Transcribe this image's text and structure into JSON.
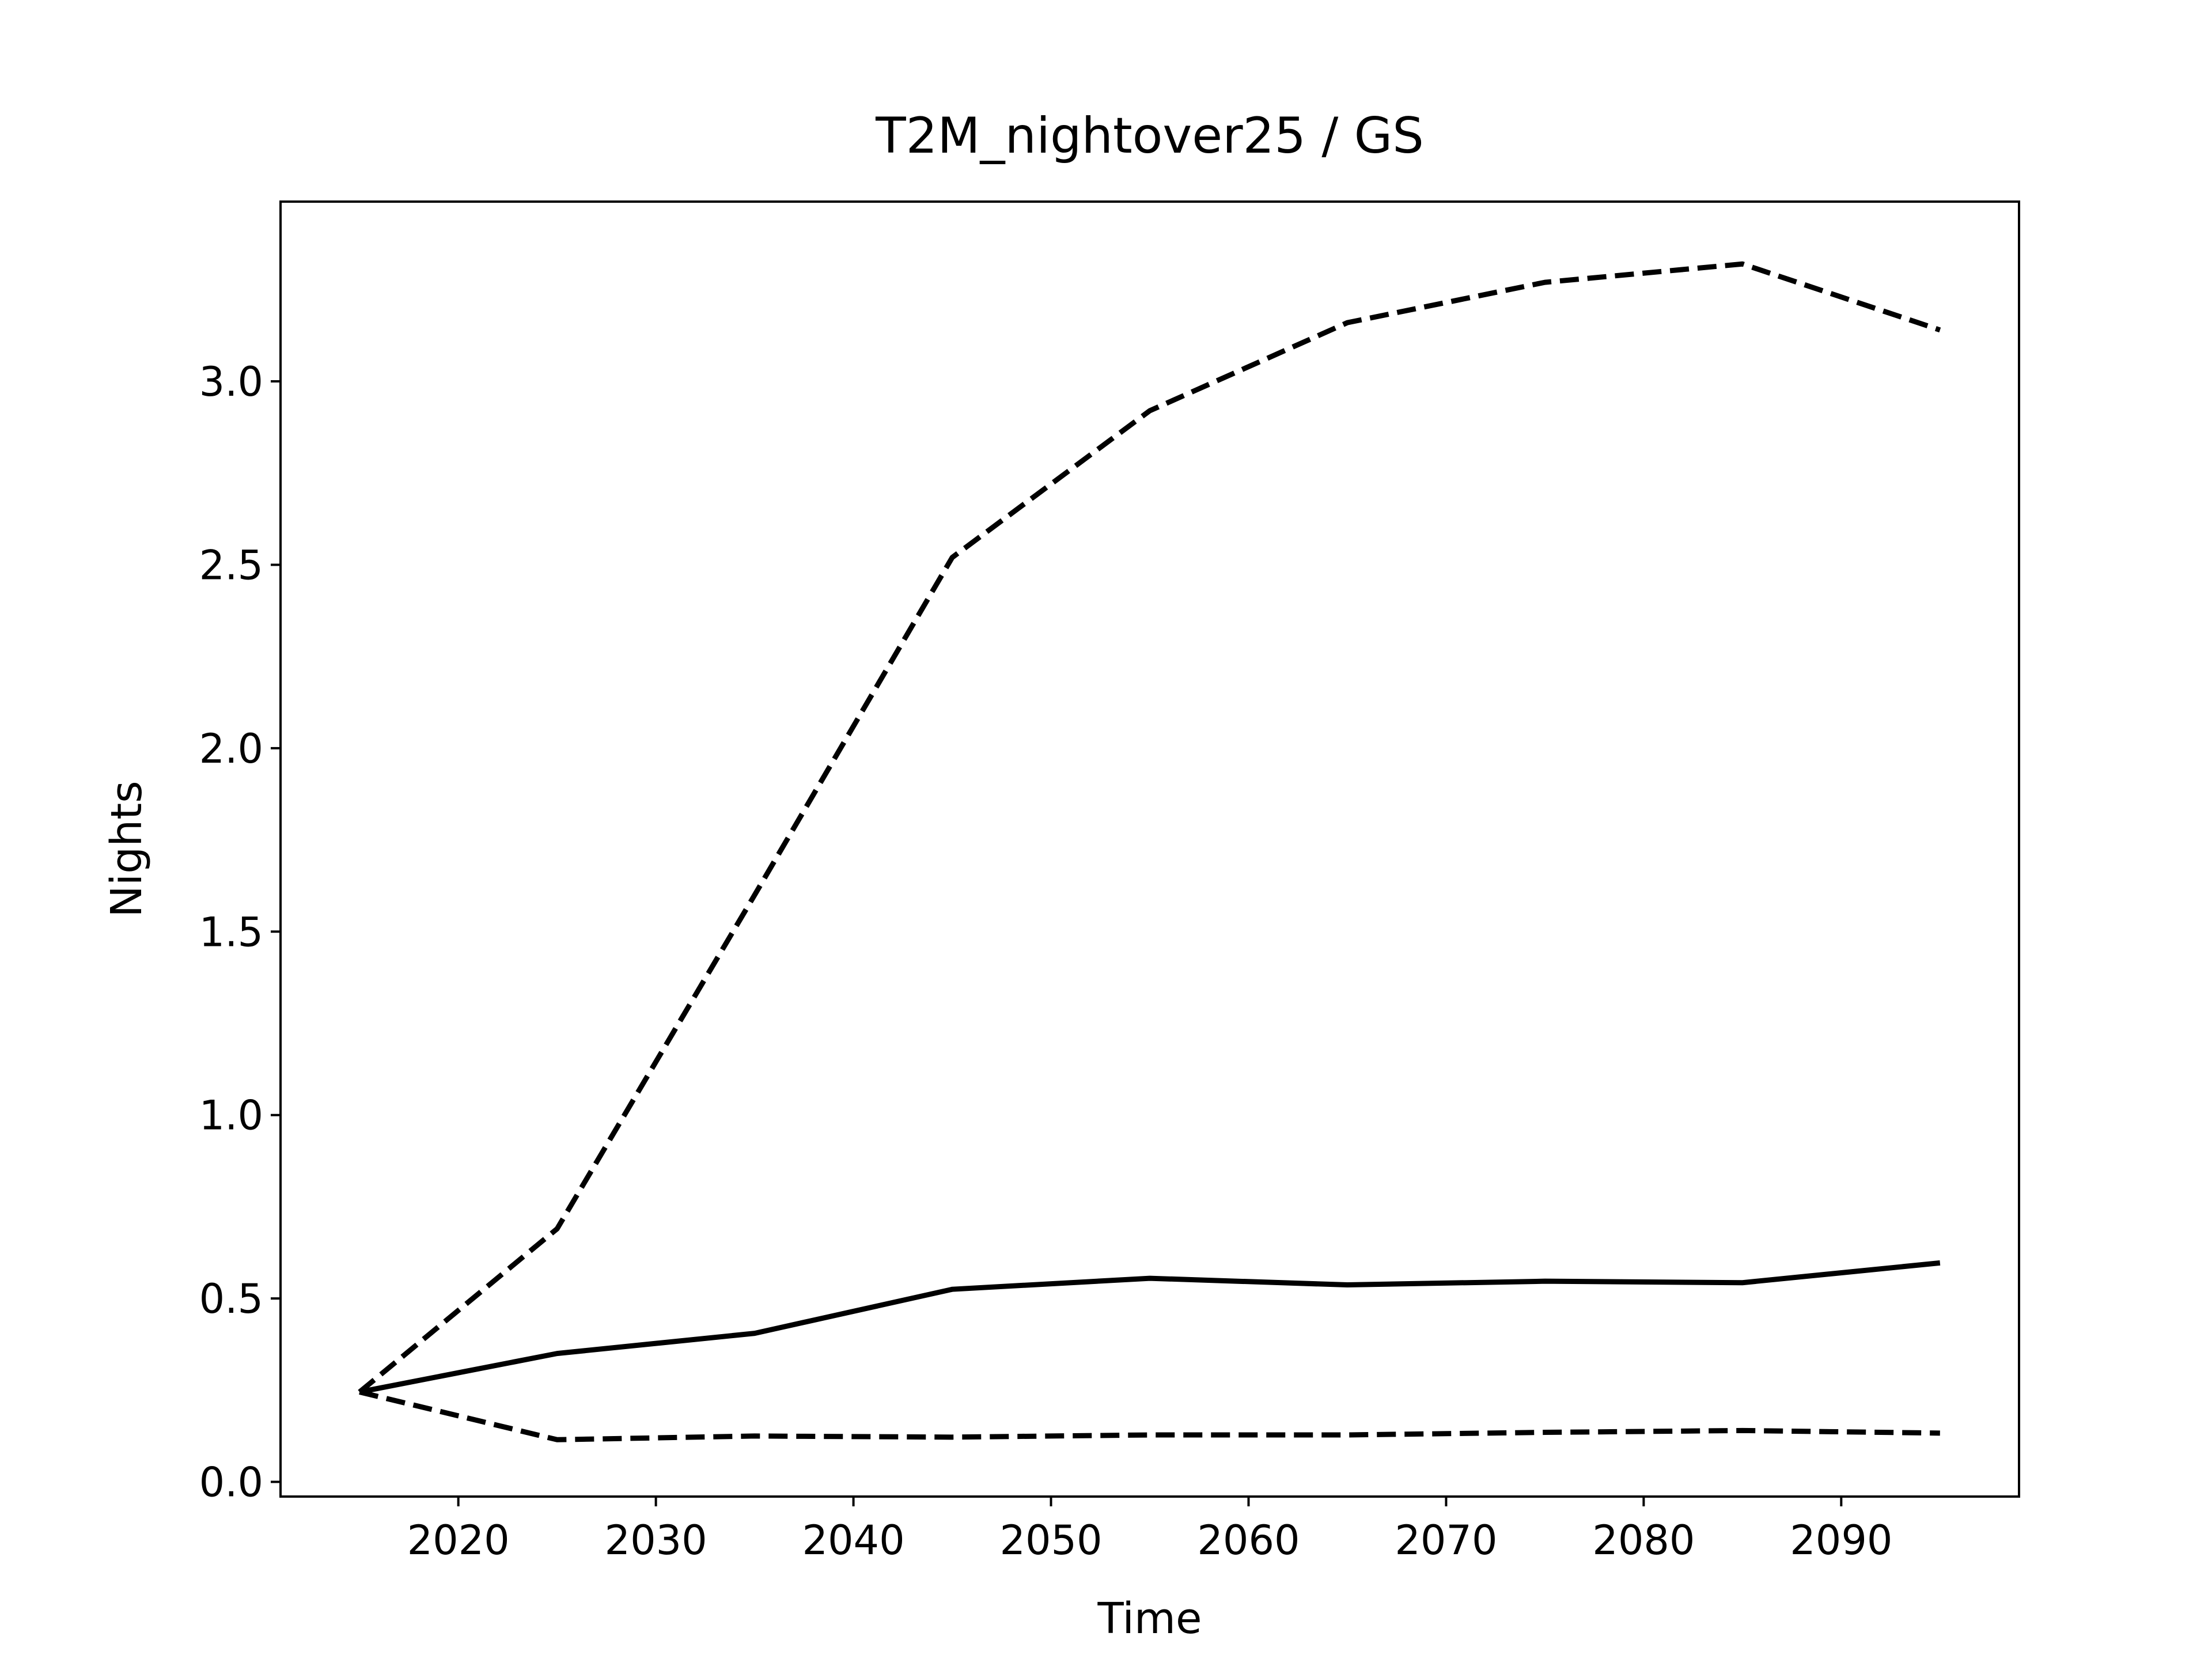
{
  "chart_data": {
    "type": "line",
    "title": "T2M_nightover25 / GS",
    "xlabel": "Time",
    "ylabel": "Nights",
    "x": [
      2015,
      2025,
      2035,
      2045,
      2055,
      2065,
      2075,
      2085,
      2095
    ],
    "series": [
      {
        "color": "#000000",
        "dashed": false,
        "values": [
          0.245,
          0.35,
          0.405,
          0.525,
          0.555,
          0.537,
          0.547,
          0.543,
          0.597
        ]
      },
      {
        "color": "#000000",
        "dashed": true,
        "values": [
          0.245,
          0.69,
          1.6,
          2.52,
          2.92,
          3.16,
          3.27,
          3.32,
          3.14
        ]
      },
      {
        "color": "#000000",
        "dashed": true,
        "values": [
          0.245,
          0.115,
          0.125,
          0.122,
          0.128,
          0.128,
          0.135,
          0.14,
          0.133
        ]
      }
    ],
    "xlim": [
      2011,
      2099
    ],
    "xticks": [
      2020,
      2030,
      2040,
      2050,
      2060,
      2070,
      2080,
      2090
    ],
    "ylim": [
      -0.04,
      3.49
    ],
    "yticks": [
      {
        "value": 0,
        "label": "0.0"
      },
      {
        "value": 0.5,
        "label": "0.5"
      },
      {
        "value": 1,
        "label": "1.0"
      },
      {
        "value": 1.5,
        "label": "1.5"
      },
      {
        "value": 2,
        "label": "2.0"
      },
      {
        "value": 2.5,
        "label": "2.5"
      },
      {
        "value": 3,
        "label": "3.0"
      }
    ],
    "grid": false
  }
}
